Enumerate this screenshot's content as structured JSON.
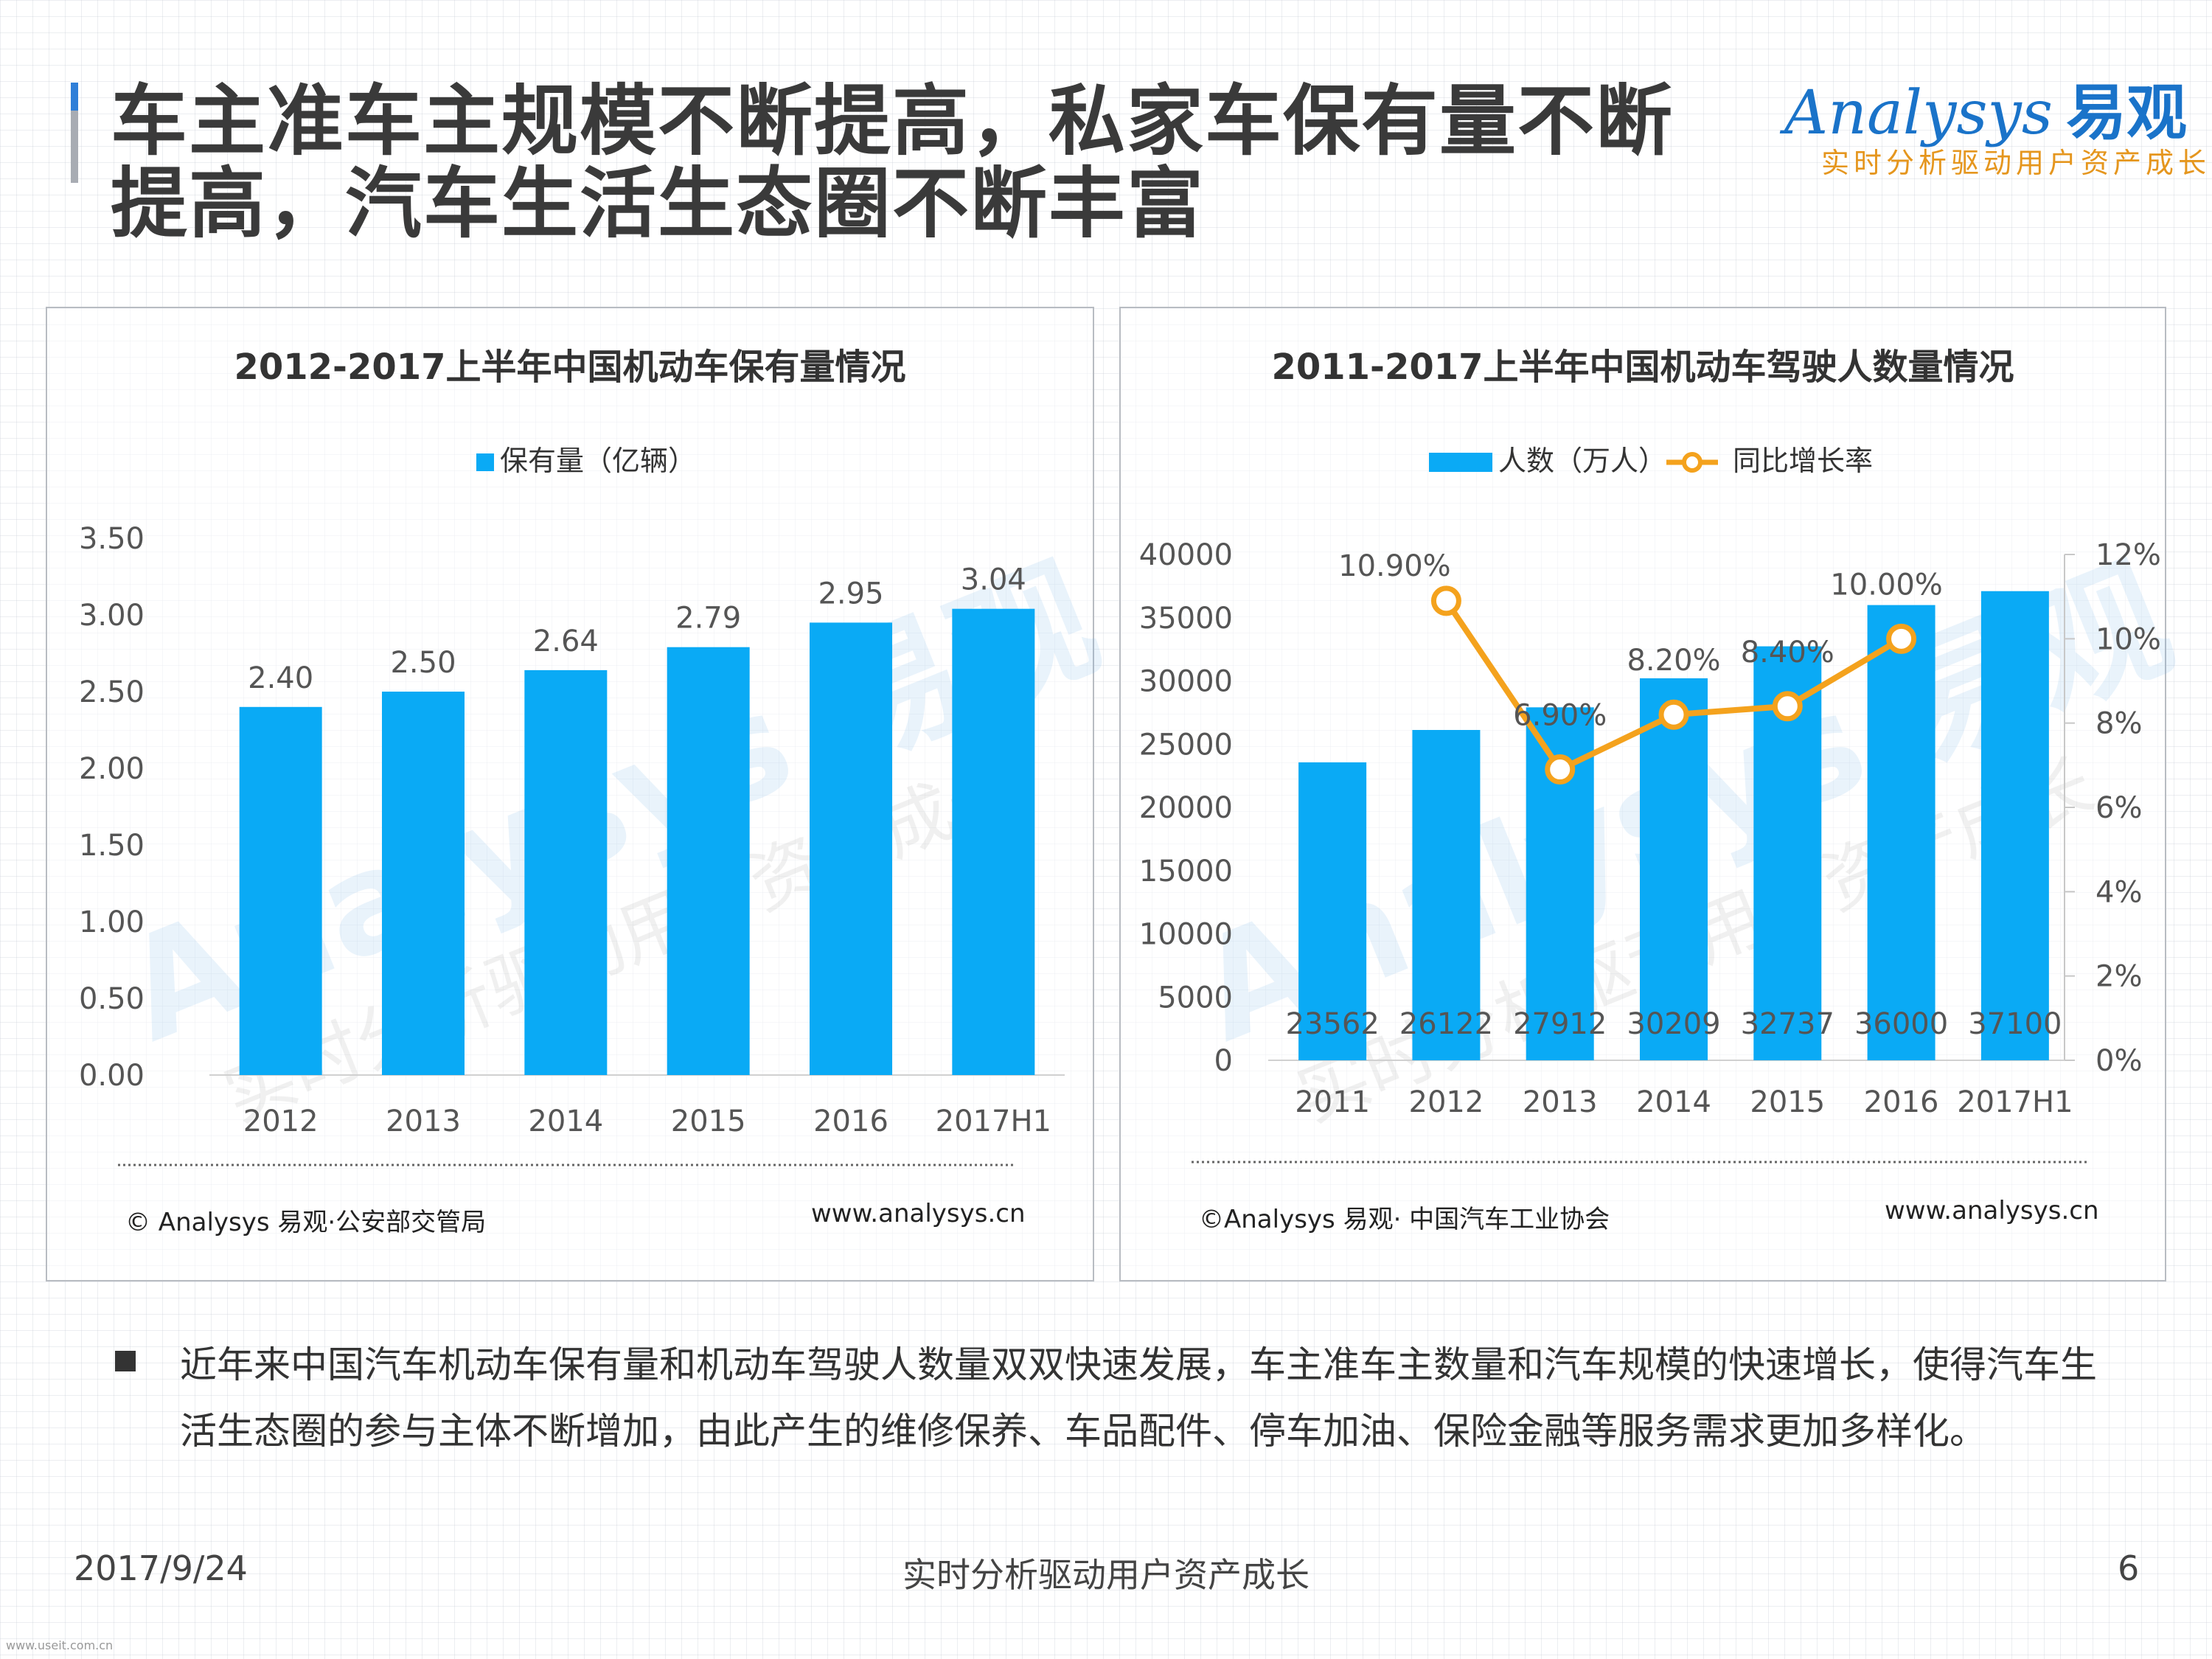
{
  "header": {
    "title": "车主准车主规模不断提高，私家车保有量不断提高，汽车生活生态圈不断丰富",
    "logo_main": "Analysys",
    "logo_cn": "易观",
    "logo_slogan": "实时分析驱动用户资产成长"
  },
  "colors": {
    "bar": "#0aaaf5",
    "line": "#f4a21d",
    "accent": "#2f7fd8"
  },
  "watermark": {
    "main": "Analysys 易观",
    "sub": "实时分析驱动用户资产成长"
  },
  "chart_data": [
    {
      "type": "bar",
      "title": "2012-2017上半年中国机动车保有量情况",
      "categories": [
        "2012",
        "2013",
        "2014",
        "2015",
        "2016",
        "2017H1"
      ],
      "series": [
        {
          "name": "保有量（亿辆）",
          "values": [
            2.4,
            2.5,
            2.64,
            2.79,
            2.95,
            3.04
          ],
          "labels": [
            "2.40",
            "2.50",
            "2.64",
            "2.79",
            "2.95",
            "3.04"
          ]
        }
      ],
      "yticks": [
        "0.00",
        "0.50",
        "1.00",
        "1.50",
        "2.00",
        "2.50",
        "3.00",
        "3.50"
      ],
      "ylim": [
        0,
        3.5
      ],
      "legend": "top-center",
      "grid": false,
      "source": "© Analysys 易观·公安部交管局",
      "site": "www.analysys.cn"
    },
    {
      "type": "bar",
      "title": "2011-2017上半年中国机动车驾驶人数量情况",
      "categories": [
        "2011",
        "2012",
        "2013",
        "2014",
        "2015",
        "2016",
        "2017H1"
      ],
      "series": [
        {
          "name": "人数（万人）",
          "type": "bar",
          "axis": "left",
          "values": [
            23562,
            26122,
            27912,
            30209,
            32737,
            36000,
            37100
          ],
          "labels": [
            "23562",
            "26122",
            "27912",
            "30209",
            "32737",
            "36000",
            "37100"
          ]
        },
        {
          "name": "同比增长率",
          "type": "line",
          "axis": "right",
          "values": [
            null,
            10.9,
            6.9,
            8.2,
            8.4,
            10.0,
            null
          ],
          "labels": [
            "",
            "10.90%",
            "6.90%",
            "8.20%",
            "8.40%",
            "10.00%",
            ""
          ]
        }
      ],
      "yticks_left": [
        "0",
        "5000",
        "10000",
        "15000",
        "20000",
        "25000",
        "30000",
        "35000",
        "40000"
      ],
      "ylim_left": [
        0,
        40000
      ],
      "yticks_right": [
        "0%",
        "2%",
        "4%",
        "6%",
        "8%",
        "10%",
        "12%"
      ],
      "ylim_right": [
        0,
        12
      ],
      "legend": "top-center",
      "grid": false,
      "source": "©Analysys 易观· 中国汽车工业协会",
      "site": "www.analysys.cn"
    }
  ],
  "bullet": {
    "text": "近年来中国汽车机动车保有量和机动车驾驶人数量双双快速发展，车主准车主数量和汽车规模的快速增长，使得汽车生活生态圈的参与主体不断增加，由此产生的维修保养、车品配件、停车加油、保险金融等服务需求更加多样化。"
  },
  "footer": {
    "date": "2017/9/24",
    "slogan": "实时分析驱动用户资产成长",
    "page": "6",
    "tiny": "www.useit.com.cn"
  }
}
